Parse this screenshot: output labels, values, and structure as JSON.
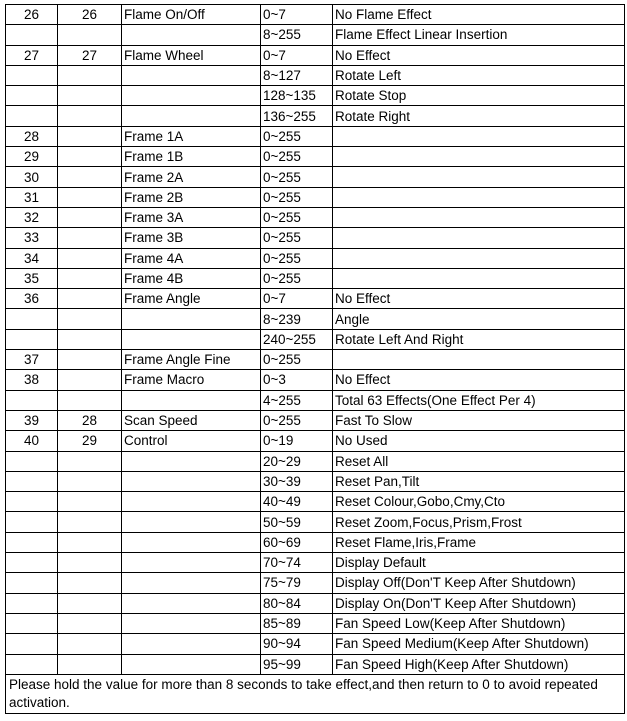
{
  "rows": [
    [
      "26",
      "26",
      "Flame On/Off",
      "0~7",
      "No Flame Effect"
    ],
    [
      "",
      "",
      "",
      "8~255",
      "Flame Effect Linear Insertion"
    ],
    [
      "27",
      "27",
      "Flame Wheel",
      "0~7",
      "No Effect"
    ],
    [
      "",
      "",
      "",
      "8~127",
      "Rotate Left"
    ],
    [
      "",
      "",
      "",
      "128~135",
      "Rotate Stop"
    ],
    [
      "",
      "",
      "",
      "136~255",
      "Rotate Right"
    ],
    [
      "28",
      "",
      "Frame 1A",
      "0~255",
      ""
    ],
    [
      "29",
      "",
      "Frame 1B",
      "0~255",
      ""
    ],
    [
      "30",
      "",
      "Frame 2A",
      "0~255",
      ""
    ],
    [
      "31",
      "",
      "Frame 2B",
      "0~255",
      ""
    ],
    [
      "32",
      "",
      "Frame 3A",
      "0~255",
      ""
    ],
    [
      "33",
      "",
      "Frame 3B",
      "0~255",
      ""
    ],
    [
      "34",
      "",
      "Frame 4A",
      "0~255",
      ""
    ],
    [
      "35",
      "",
      "Frame 4B",
      "0~255",
      ""
    ],
    [
      "36",
      "",
      "Frame Angle",
      "0~7",
      "No Effect"
    ],
    [
      "",
      "",
      "",
      "8~239",
      "Angle"
    ],
    [
      "",
      "",
      "",
      "240~255",
      "Rotate Left And Right"
    ],
    [
      "37",
      "",
      "Frame Angle Fine",
      "0~255",
      ""
    ],
    [
      "38",
      "",
      "Frame Macro",
      "0~3",
      "No Effect"
    ],
    [
      "",
      "",
      "",
      "4~255",
      "Total 63 Effects(One Effect Per 4)"
    ],
    [
      "39",
      "28",
      "Scan Speed",
      "0~255",
      "Fast To Slow"
    ],
    [
      "40",
      "29",
      "Control",
      "0~19",
      "No Used"
    ],
    [
      "",
      "",
      "",
      "20~29",
      "Reset All"
    ],
    [
      "",
      "",
      "",
      "30~39",
      "Reset Pan,Tilt"
    ],
    [
      "",
      "",
      "",
      "40~49",
      "Reset Colour,Gobo,Cmy,Cto"
    ],
    [
      "",
      "",
      "",
      "50~59",
      "Reset Zoom,Focus,Prism,Frost"
    ],
    [
      "",
      "",
      "",
      "60~69",
      "Reset Flame,Iris,Frame"
    ],
    [
      "",
      "",
      "",
      "70~74",
      "Display Default"
    ],
    [
      "",
      "",
      "",
      "75~79",
      "Display Off(Don'T Keep After Shutdown)"
    ],
    [
      "",
      "",
      "",
      "80~84",
      "Display On(Don'T Keep After Shutdown)"
    ],
    [
      "",
      "",
      "",
      "85~89",
      "Fan Speed Low(Keep After Shutdown)"
    ],
    [
      "",
      "",
      "",
      "90~94",
      "Fan Speed Medium(Keep After Shutdown)"
    ],
    [
      "",
      "",
      "",
      "95~99",
      "Fan Speed High(Keep After Shutdown)"
    ]
  ],
  "note": "Please hold the value for more than 8 seconds to take effect,and then return to 0 to avoid repeated activation."
}
